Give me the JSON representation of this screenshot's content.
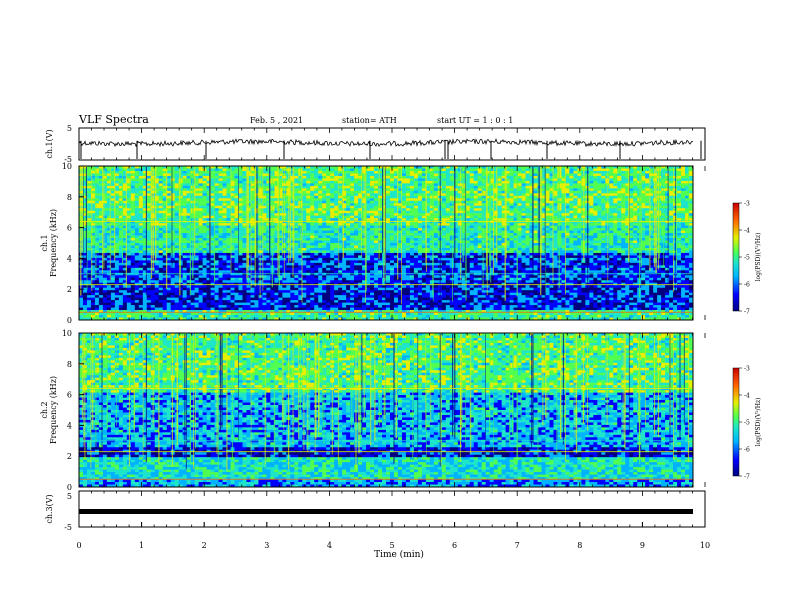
{
  "header": {
    "title": "VLF Spectra",
    "date": "Feb. 5 , 2021",
    "station": "station= ATH",
    "start": "start  UT =  1 : 0  : 1"
  },
  "chart_data": [
    {
      "type": "line",
      "id": "ch1-waveform",
      "ylabel": "ch.1(V)",
      "ylim": [
        -5,
        5
      ],
      "yticks": [
        "5",
        "-5"
      ],
      "xlim": [
        0,
        10
      ],
      "color": "#000000"
    },
    {
      "type": "heatmap",
      "id": "ch1-spectrogram",
      "ylabel": "ch.1\nFrequency  (kHz)",
      "ylim": [
        0,
        10
      ],
      "yticks": [
        "0",
        "2",
        "4",
        "6",
        "8",
        "10"
      ],
      "xlim": [
        0,
        10
      ],
      "colorbar": {
        "label": "log(PSD)(V²/Hz)",
        "range": [
          -7,
          -3
        ],
        "ticks": [
          "-3",
          "-4",
          "-5",
          "-6",
          "-7"
        ]
      }
    },
    {
      "type": "heatmap",
      "id": "ch2-spectrogram",
      "ylabel": "ch.2\nFrequency  (kHz)",
      "ylim": [
        0,
        10
      ],
      "yticks": [
        "0",
        "2",
        "4",
        "6",
        "8",
        "10"
      ],
      "xlim": [
        0,
        10
      ],
      "colorbar": {
        "label": "log(PSD)(V²/Hz)",
        "range": [
          -7,
          -3
        ],
        "ticks": [
          "-3",
          "-4",
          "-5",
          "-6",
          "-7"
        ]
      }
    },
    {
      "type": "line",
      "id": "ch3-waveform",
      "ylabel": "ch.3(V)",
      "ylim": [
        -5,
        5
      ],
      "yticks": [
        "5",
        "-5"
      ],
      "xlim": [
        0,
        10
      ],
      "xlabel": "Time  (min)",
      "xticks": [
        "0",
        "1",
        "2",
        "3",
        "4",
        "5",
        "6",
        "7",
        "8",
        "9",
        "10"
      ],
      "color": "#000000"
    }
  ],
  "colors": {
    "colormap": [
      "#00007f",
      "#0000ff",
      "#00b4ff",
      "#1ee6c8",
      "#50ff50",
      "#e6f000",
      "#ff6400",
      "#c80000"
    ],
    "axis": "#000000"
  }
}
